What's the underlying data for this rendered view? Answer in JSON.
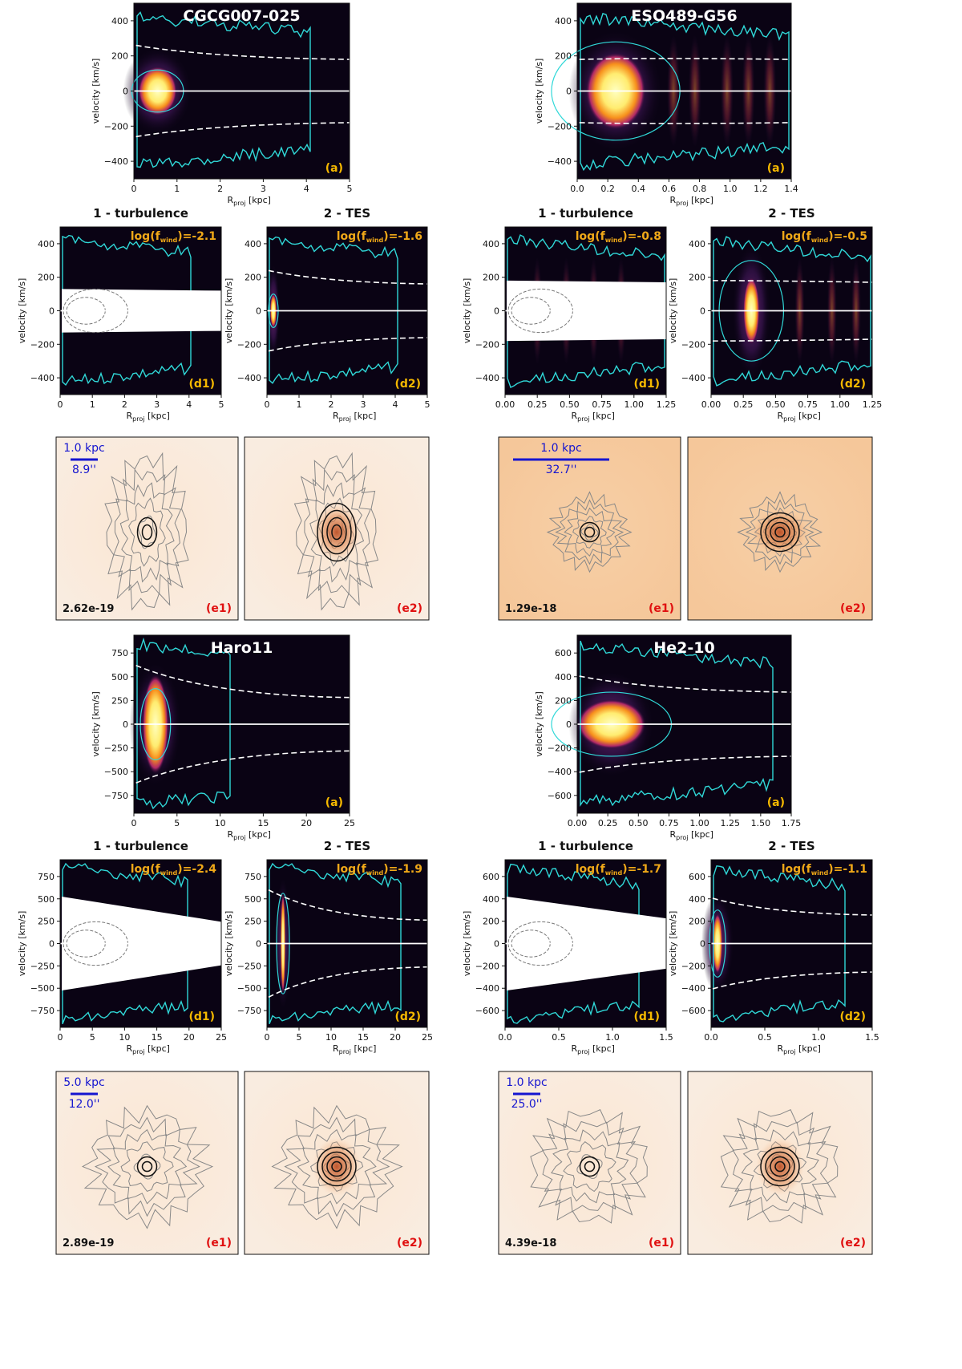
{
  "figure": {
    "galaxies": [
      {
        "name": "CGCG007-025",
        "main": {
          "label": "(a)",
          "xlabel": "R",
          "xlabel_sub": "proj",
          "xlabel_unit": " [kpc]",
          "ylabel": "velocity [km/s]",
          "xticks": [
            "0",
            "1",
            "2",
            "3",
            "4",
            "5"
          ],
          "yticks": [
            "400",
            "200",
            "0",
            "−200",
            "−400"
          ]
        },
        "d1": {
          "title": "1 - turbulence",
          "fwind_prefix": "log(f",
          "fwind_sub": "wind",
          "fwind_value": ")=-2.1",
          "label": "(d1)",
          "xticks": [
            "0",
            "1",
            "2",
            "3",
            "4",
            "5"
          ],
          "yticks": [
            "400",
            "200",
            "0",
            "−200",
            "−400"
          ]
        },
        "d2": {
          "title": "2 - TES",
          "fwind_prefix": "log(f",
          "fwind_sub": "wind",
          "fwind_value": ")=-1.6",
          "label": "(d2)",
          "xticks": [
            "0",
            "1",
            "2",
            "3",
            "4",
            "5"
          ],
          "yticks": [
            "400",
            "200",
            "0",
            "−200",
            "−400"
          ]
        },
        "e": {
          "scale_kpc": "1.0 kpc",
          "scale_arcsec": "8.9''",
          "flux": "2.62e-19",
          "label1": "(e1)",
          "label2": "(e2)"
        }
      },
      {
        "name": "ESO489-G56",
        "main": {
          "label": "(a)",
          "xlabel": "R",
          "xlabel_sub": "proj",
          "xlabel_unit": " [kpc]",
          "ylabel": "velocity [km/s]",
          "xticks": [
            "0.0",
            "0.2",
            "0.4",
            "0.6",
            "0.8",
            "1.0",
            "1.2",
            "1.4"
          ],
          "yticks": [
            "400",
            "200",
            "0",
            "−200",
            "−400"
          ]
        },
        "d1": {
          "title": "1 - turbulence",
          "fwind_prefix": "log(f",
          "fwind_sub": "wind",
          "fwind_value": ")=-0.8",
          "label": "(d1)",
          "xticks": [
            "0.00",
            "0.25",
            "0.50",
            "0.75",
            "1.00",
            "1.25"
          ],
          "yticks": [
            "400",
            "200",
            "0",
            "−200",
            "−400"
          ]
        },
        "d2": {
          "title": "2 - TES",
          "fwind_prefix": "log(f",
          "fwind_sub": "wind",
          "fwind_value": ")=-0.5",
          "label": "(d2)",
          "xticks": [
            "0.00",
            "0.25",
            "0.50",
            "0.75",
            "1.00",
            "1.25"
          ],
          "yticks": [
            "400",
            "200",
            "0",
            "−200",
            "−400"
          ]
        },
        "e": {
          "scale_kpc": "1.0 kpc",
          "scale_arcsec": "32.7''",
          "flux": "1.29e-18",
          "label1": "(e1)",
          "label2": "(e2)"
        }
      },
      {
        "name": "Haro11",
        "main": {
          "label": "(a)",
          "xlabel": "R",
          "xlabel_sub": "proj",
          "xlabel_unit": " [kpc]",
          "ylabel": "velocity [km/s]",
          "xticks": [
            "0",
            "5",
            "10",
            "15",
            "20",
            "25"
          ],
          "yticks": [
            "750",
            "500",
            "250",
            "0",
            "−250",
            "−500",
            "−750"
          ]
        },
        "d1": {
          "title": "1 - turbulence",
          "fwind_prefix": "log(f",
          "fwind_sub": "wind",
          "fwind_value": ")=-2.4",
          "label": "(d1)",
          "xticks": [
            "0",
            "5",
            "10",
            "15",
            "20",
            "25"
          ],
          "yticks": [
            "750",
            "500",
            "250",
            "0",
            "−250",
            "−500",
            "−750"
          ]
        },
        "d2": {
          "title": "2 - TES",
          "fwind_prefix": "log(f",
          "fwind_sub": "wind",
          "fwind_value": ")=-1.9",
          "label": "(d2)",
          "xticks": [
            "0",
            "5",
            "10",
            "15",
            "20",
            "25"
          ],
          "yticks": [
            "750",
            "500",
            "250",
            "0",
            "−250",
            "−500",
            "−750"
          ]
        },
        "e": {
          "scale_kpc": "5.0 kpc",
          "scale_arcsec": "12.0''",
          "flux": "2.89e-19",
          "label1": "(e1)",
          "label2": "(e2)"
        }
      },
      {
        "name": "He2-10",
        "main": {
          "label": "(a)",
          "xlabel": "R",
          "xlabel_sub": "proj",
          "xlabel_unit": " [kpc]",
          "ylabel": "velocity [km/s]",
          "xticks": [
            "0.00",
            "0.25",
            "0.50",
            "0.75",
            "1.00",
            "1.25",
            "1.50",
            "1.75"
          ],
          "yticks": [
            "600",
            "400",
            "200",
            "0",
            "−200",
            "−400",
            "−600"
          ]
        },
        "d1": {
          "title": "1 - turbulence",
          "fwind_prefix": "log(f",
          "fwind_sub": "wind",
          "fwind_value": ")=-1.7",
          "label": "(d1)",
          "xticks": [
            "0.0",
            "0.5",
            "1.0",
            "1.5"
          ],
          "yticks": [
            "600",
            "400",
            "200",
            "0",
            "−200",
            "−400",
            "−600"
          ]
        },
        "d2": {
          "title": "2 - TES",
          "fwind_prefix": "log(f",
          "fwind_sub": "wind",
          "fwind_value": ")=-1.1",
          "label": "(d2)",
          "xticks": [
            "0.0",
            "0.5",
            "1.0",
            "1.5"
          ],
          "yticks": [
            "600",
            "400",
            "200",
            "0",
            "−200",
            "−400",
            "−600"
          ]
        },
        "e": {
          "scale_kpc": "1.0 kpc",
          "scale_arcsec": "25.0''",
          "flux": "4.39e-18",
          "label1": "(e1)",
          "label2": "(e2)"
        }
      }
    ]
  }
}
